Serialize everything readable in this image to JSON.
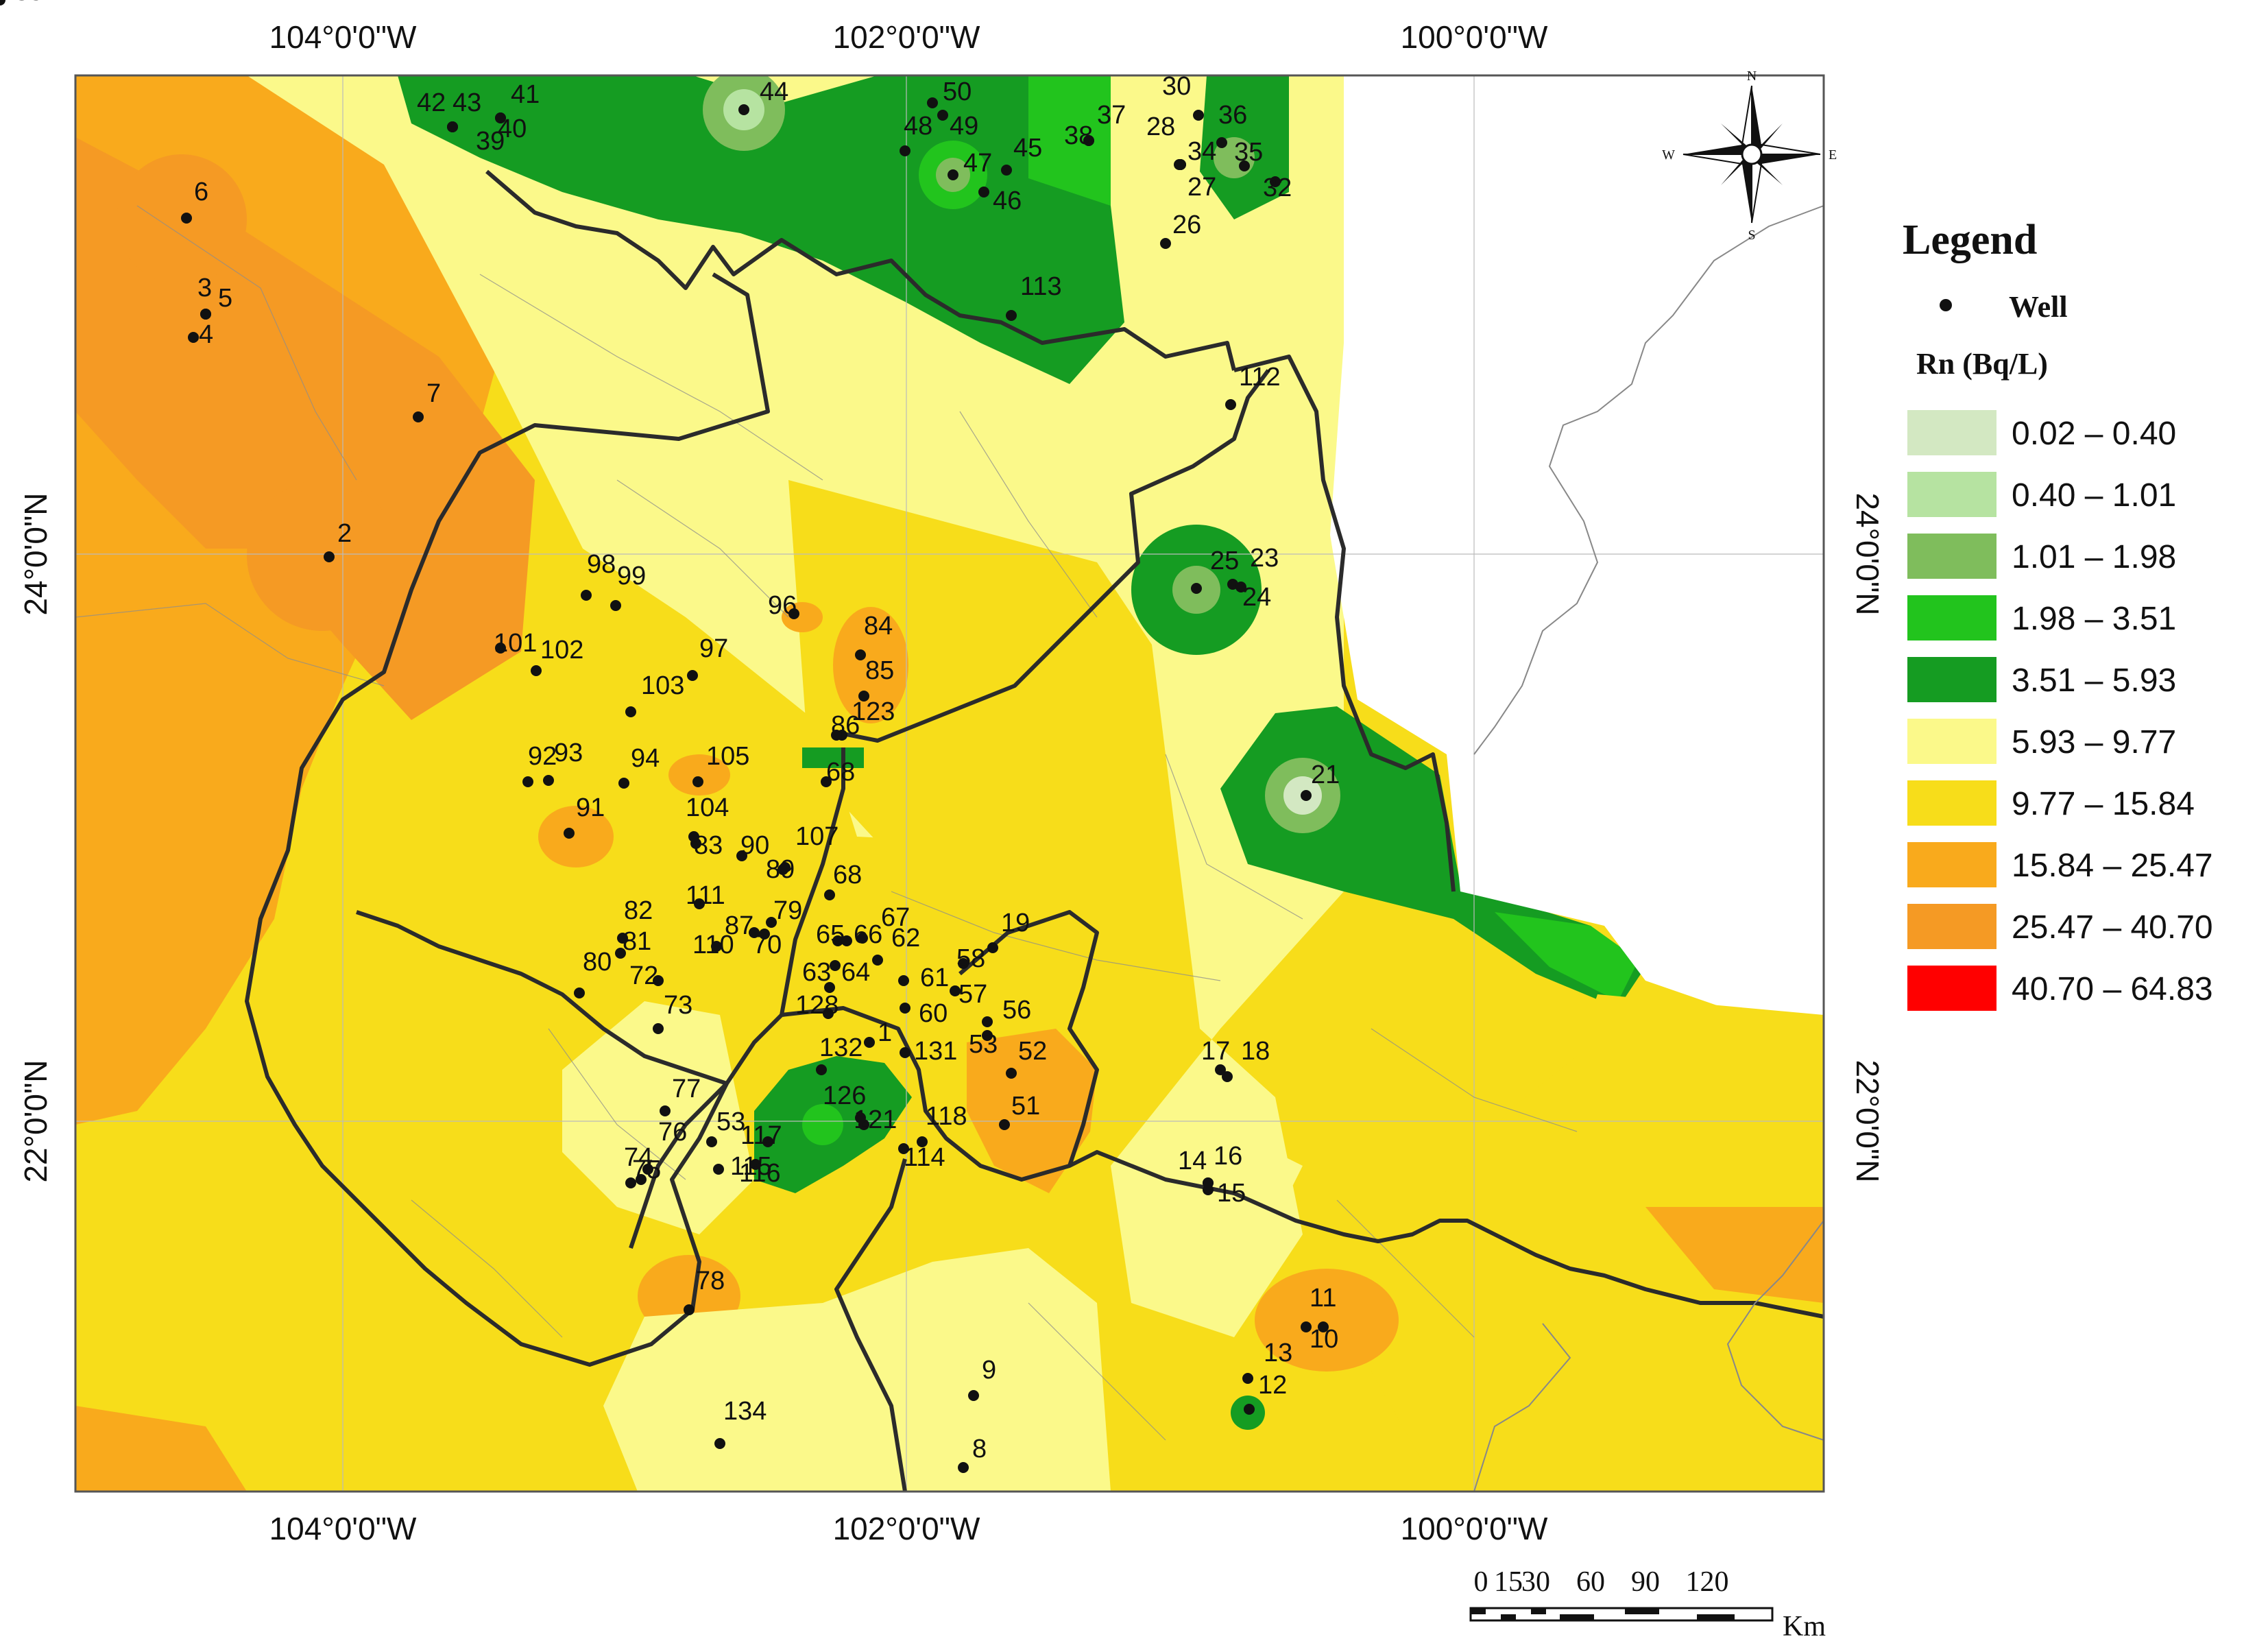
{
  "axes": {
    "top": [
      "104°0'0\"W",
      "102°0'0\"W",
      "100°0'0\"W"
    ],
    "bottom": [
      "104°0'0\"W",
      "102°0'0\"W",
      "100°0'0\"W"
    ],
    "left": [
      "24°0'0\"N",
      "22°0'0\"N"
    ],
    "right": [
      "24°0'0\"N",
      "22°0'0\"N"
    ]
  },
  "legend": {
    "title": "Legend",
    "well_label": "Well",
    "unit_label": "Rn (Bq/L)",
    "classes": [
      {
        "label": "0.02 – 0.40",
        "color": "#d3e8c2"
      },
      {
        "label": "0.40 – 1.01",
        "color": "#b6e3a1"
      },
      {
        "label": "1.01 – 1.98",
        "color": "#7fbd5c"
      },
      {
        "label": "1.98 – 3.51",
        "color": "#22c41d"
      },
      {
        "label": "3.51 – 5.93",
        "color": "#159c22"
      },
      {
        "label": "5.93 – 9.77",
        "color": "#fbf98a"
      },
      {
        "label": "9.77 – 15.84",
        "color": "#f7dd1a"
      },
      {
        "label": "15.84 – 25.47",
        "color": "#f9aa1c"
      },
      {
        "label": "25.47 – 40.70",
        "color": "#f59a24"
      },
      {
        "label": "40.70 – 64.83",
        "color": "#ff0000"
      }
    ]
  },
  "scale_bar": {
    "ticks": [
      "0",
      "15",
      "30",
      "60",
      "90",
      "120"
    ],
    "unit": "Km"
  },
  "compass": {
    "n": "N",
    "s": "S",
    "e": "E",
    "w": "W"
  },
  "wells": [
    "1",
    "2",
    "3",
    "4",
    "5",
    "6",
    "7",
    "8",
    "9",
    "10",
    "11",
    "12",
    "13",
    "14",
    "15",
    "16",
    "17",
    "18",
    "19",
    "21",
    "23",
    "24",
    "25",
    "26",
    "27",
    "28",
    "30",
    "32",
    "34",
    "35",
    "36",
    "37",
    "38",
    "39",
    "40",
    "41",
    "42",
    "43",
    "44",
    "45",
    "46",
    "47",
    "48",
    "49",
    "50",
    "51",
    "52",
    "53",
    "53",
    "56",
    "57",
    "58",
    "60",
    "61",
    "62",
    "63",
    "64",
    "65",
    "66",
    "67",
    "68",
    "68",
    "70",
    "72",
    "73",
    "74",
    "75",
    "76",
    "77",
    "78",
    "79",
    "80",
    "81",
    "82",
    "83",
    "84",
    "85",
    "86",
    "87",
    "89",
    "90",
    "91",
    "92",
    "93",
    "94",
    "96",
    "97",
    "98",
    "99",
    "101",
    "102",
    "103",
    "104",
    "105",
    "107",
    "110",
    "111",
    "112",
    "113",
    "114",
    "115",
    "116",
    "117",
    "118",
    "121",
    "123",
    "126",
    "128",
    "131",
    "132",
    "134",
    "135"
  ]
}
